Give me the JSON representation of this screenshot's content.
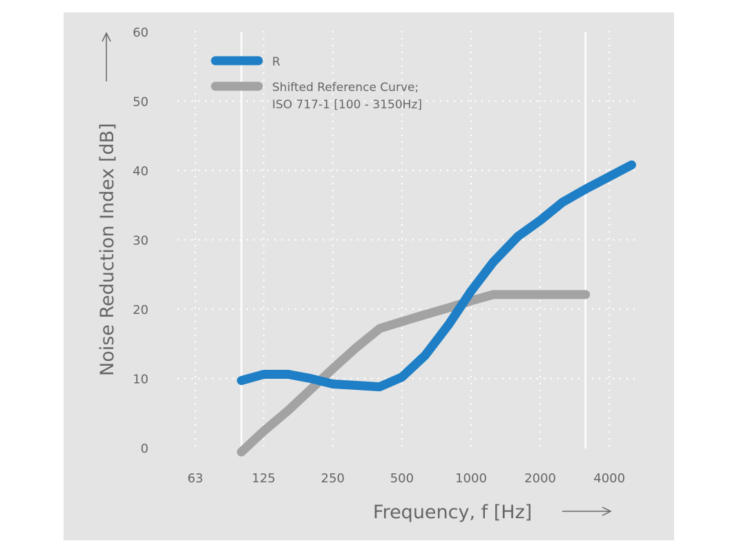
{
  "chart_data": {
    "type": "line",
    "xlabel": "Frequency, f [Hz]",
    "ylabel": "Noise Reduction Index [dB]",
    "xscale": "log",
    "xticks": [
      63,
      125,
      250,
      500,
      1000,
      2000,
      4000
    ],
    "yticks": [
      0,
      10,
      20,
      30,
      40,
      50,
      60
    ],
    "ylim": [
      0,
      60
    ],
    "xlim": [
      50,
      5000
    ],
    "grid": "dotted",
    "legend_placement": "top-left",
    "range_markers_hz": [
      100,
      3150
    ],
    "background": "#e4e4e4",
    "series": [
      {
        "name": "R",
        "color": "#1e7fc6",
        "x": [
          100,
          125,
          160,
          200,
          250,
          315,
          400,
          500,
          630,
          800,
          1000,
          1250,
          1600,
          2000,
          2500,
          3150,
          4000,
          5000
        ],
        "y": [
          9.7,
          10.6,
          10.6,
          10.0,
          9.2,
          9.0,
          8.8,
          10.2,
          13.3,
          17.8,
          22.6,
          26.8,
          30.5,
          32.8,
          35.4,
          37.3,
          39.1,
          40.8
        ]
      },
      {
        "name": "Shifted Reference Curve;\nISO 717-1 [100 - 3150Hz]",
        "color": "#a3a3a3",
        "x": [
          100,
          125,
          160,
          200,
          250,
          315,
          400,
          500,
          630,
          800,
          1000,
          1250,
          1600,
          2000,
          2500,
          3150
        ],
        "y": [
          -0.6,
          2.4,
          5.4,
          8.4,
          11.4,
          14.4,
          17.2,
          18.2,
          19.2,
          20.2,
          21.2,
          22.1,
          22.1,
          22.1,
          22.1,
          22.1
        ]
      }
    ],
    "legend": [
      "R",
      "Shifted Reference Curve;",
      "ISO 717-1 [100 - 3150Hz]"
    ]
  }
}
